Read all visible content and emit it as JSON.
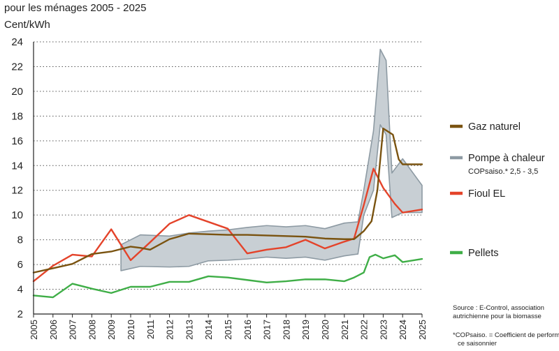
{
  "chart_data": {
    "type": "line",
    "title": "pour les ménages 2005 - 2025",
    "ylabel": "Cent/kWh",
    "xlabel": "",
    "ylim": [
      2,
      24
    ],
    "yticks": [
      2,
      4,
      6,
      8,
      10,
      12,
      14,
      16,
      18,
      20,
      22,
      24
    ],
    "xlim": [
      2005,
      2025
    ],
    "xticks": [
      "2005",
      "2006",
      "2007",
      "2008",
      "2009",
      "2010",
      "2011",
      "2012",
      "2013",
      "2014",
      "2015",
      "2016",
      "2017",
      "2018",
      "2019",
      "2020",
      "2021",
      "2022",
      "2023",
      "2024",
      "2025"
    ],
    "grid": "horizontal-dotted",
    "legend_position": "right",
    "series": [
      {
        "name": "Gaz naturel",
        "color": "#7a5310",
        "points": [
          [
            2005,
            5.35
          ],
          [
            2006,
            5.7
          ],
          [
            2007,
            6.05
          ],
          [
            2008,
            6.85
          ],
          [
            2009,
            7.05
          ],
          [
            2010,
            7.45
          ],
          [
            2010.5,
            7.35
          ],
          [
            2011,
            7.2
          ],
          [
            2012,
            8.05
          ],
          [
            2013,
            8.5
          ],
          [
            2014,
            8.45
          ],
          [
            2015,
            8.4
          ],
          [
            2016,
            8.4
          ],
          [
            2017,
            8.35
          ],
          [
            2018,
            8.3
          ],
          [
            2019,
            8.25
          ],
          [
            2020,
            8.1
          ],
          [
            2021,
            8.05
          ],
          [
            2021.5,
            8.05
          ],
          [
            2022,
            8.7
          ],
          [
            2022.4,
            9.5
          ],
          [
            2022.7,
            12.0
          ],
          [
            2023,
            17.0
          ],
          [
            2023.5,
            16.5
          ],
          [
            2023.8,
            14.5
          ],
          [
            2024,
            14.1
          ],
          [
            2025,
            14.1
          ]
        ]
      },
      {
        "name": "Pompe à chaleur",
        "subtitle": "COPsaiso.* 2,5 - 3,5",
        "type": "band",
        "color": "#8d9aa3",
        "fill": "#c8cfd4",
        "upper": [
          [
            2009.5,
            7.6
          ],
          [
            2010.5,
            8.4
          ],
          [
            2012,
            8.3
          ],
          [
            2013,
            8.55
          ],
          [
            2014,
            8.7
          ],
          [
            2015,
            8.8
          ],
          [
            2016,
            9.0
          ],
          [
            2017,
            9.15
          ],
          [
            2018,
            9.05
          ],
          [
            2019,
            9.15
          ],
          [
            2020,
            8.9
          ],
          [
            2021,
            9.35
          ],
          [
            2021.7,
            9.45
          ],
          [
            2022,
            12.0
          ],
          [
            2022.5,
            16.8
          ],
          [
            2022.85,
            23.4
          ],
          [
            2023.15,
            22.5
          ],
          [
            2023.45,
            13.4
          ],
          [
            2024,
            14.55
          ],
          [
            2025,
            12.4
          ]
        ],
        "lower": [
          [
            2009.5,
            5.5
          ],
          [
            2010.5,
            5.85
          ],
          [
            2012,
            5.8
          ],
          [
            2013,
            5.85
          ],
          [
            2014,
            6.3
          ],
          [
            2015,
            6.35
          ],
          [
            2016,
            6.45
          ],
          [
            2017,
            6.6
          ],
          [
            2018,
            6.5
          ],
          [
            2019,
            6.6
          ],
          [
            2020,
            6.35
          ],
          [
            2021,
            6.7
          ],
          [
            2021.7,
            6.85
          ],
          [
            2022,
            10.0
          ],
          [
            2022.5,
            12.0
          ],
          [
            2022.85,
            17.3
          ],
          [
            2023.15,
            16.5
          ],
          [
            2023.45,
            9.8
          ],
          [
            2024,
            10.2
          ],
          [
            2025,
            10.2
          ]
        ]
      },
      {
        "name": "Fioul EL",
        "color": "#e4432a",
        "points": [
          [
            2005,
            4.65
          ],
          [
            2006,
            5.9
          ],
          [
            2007,
            6.8
          ],
          [
            2008,
            6.65
          ],
          [
            2009,
            8.85
          ],
          [
            2010,
            6.35
          ],
          [
            2011,
            7.8
          ],
          [
            2012,
            9.3
          ],
          [
            2013,
            10.0
          ],
          [
            2014,
            9.45
          ],
          [
            2015,
            8.9
          ],
          [
            2016,
            6.9
          ],
          [
            2017,
            7.2
          ],
          [
            2018,
            7.4
          ],
          [
            2019,
            8.0
          ],
          [
            2020,
            7.3
          ],
          [
            2021,
            7.85
          ],
          [
            2021.5,
            8.1
          ],
          [
            2022,
            10.8
          ],
          [
            2022.5,
            13.75
          ],
          [
            2023,
            12.2
          ],
          [
            2023.6,
            10.9
          ],
          [
            2024,
            10.2
          ],
          [
            2025,
            10.45
          ]
        ]
      },
      {
        "name": "Pellets",
        "color": "#3fae47",
        "points": [
          [
            2005,
            3.5
          ],
          [
            2006,
            3.35
          ],
          [
            2007,
            4.45
          ],
          [
            2008,
            4.05
          ],
          [
            2009,
            3.7
          ],
          [
            2010,
            4.2
          ],
          [
            2011,
            4.2
          ],
          [
            2012,
            4.6
          ],
          [
            2013,
            4.6
          ],
          [
            2014,
            5.05
          ],
          [
            2015,
            4.95
          ],
          [
            2016,
            4.75
          ],
          [
            2017,
            4.55
          ],
          [
            2018,
            4.65
          ],
          [
            2019,
            4.8
          ],
          [
            2020,
            4.8
          ],
          [
            2021,
            4.65
          ],
          [
            2021.5,
            4.95
          ],
          [
            2022,
            5.35
          ],
          [
            2022.3,
            6.6
          ],
          [
            2022.6,
            6.8
          ],
          [
            2023,
            6.5
          ],
          [
            2023.6,
            6.75
          ],
          [
            2024,
            6.2
          ],
          [
            2025,
            6.45
          ]
        ]
      }
    ],
    "annotations": {
      "source": [
        "Source : E-Control, association",
        "autrichienne pour la biomasse"
      ],
      "footnote": [
        "*COPsaiso. = Coefficient de performan-",
        "ce saisonnier"
      ]
    }
  }
}
